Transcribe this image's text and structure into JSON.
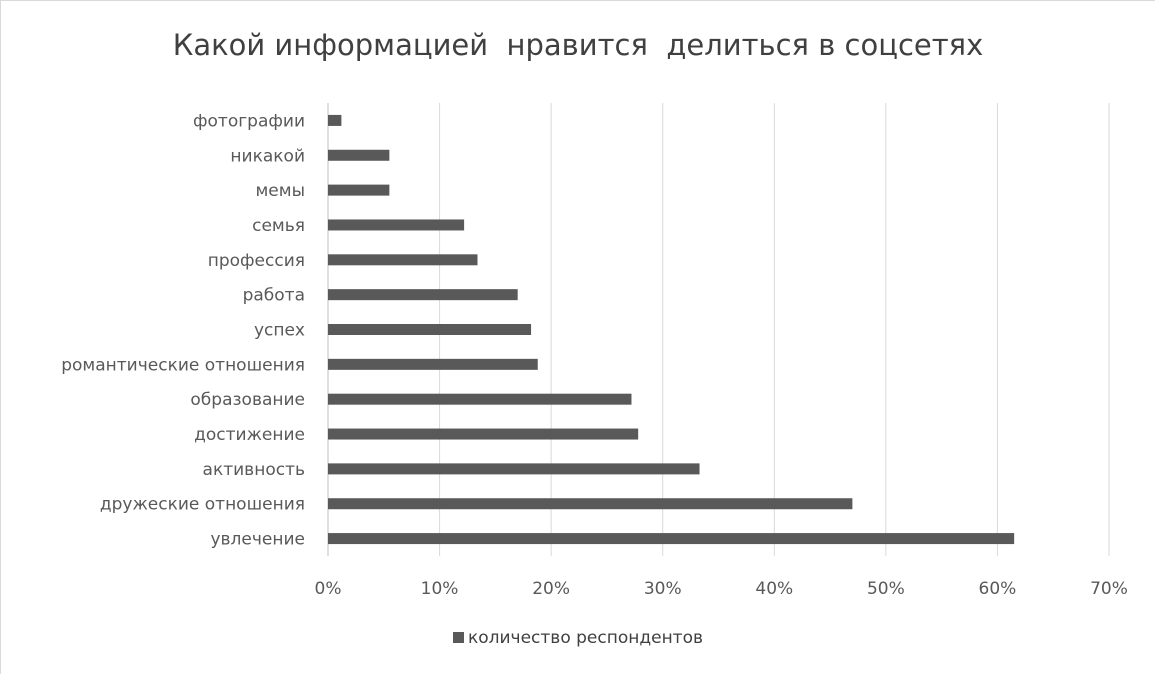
{
  "chart_data": {
    "type": "bar",
    "orientation": "horizontal",
    "title": "Какой информацией  нравится  делиться в соцсетях",
    "categories": [
      "фотографии",
      "никакой",
      "мемы",
      "семья",
      "профессия",
      "работа",
      "успех",
      "романтические отношения",
      "образование",
      "достижение",
      "активность",
      "дружеские отношения",
      "увлечение"
    ],
    "series": [
      {
        "name": "количество респондентов",
        "values": [
          1.2,
          5.5,
          5.5,
          12.2,
          13.4,
          17.0,
          18.2,
          18.8,
          27.2,
          27.8,
          33.3,
          47.0,
          61.5
        ]
      }
    ],
    "x_ticks": [
      "0%",
      "10%",
      "20%",
      "30%",
      "40%",
      "50%",
      "60%",
      "70%"
    ],
    "xlim": [
      0,
      70
    ],
    "grid": "vertical",
    "legend_position": "bottom",
    "bar_color": "#595959"
  }
}
